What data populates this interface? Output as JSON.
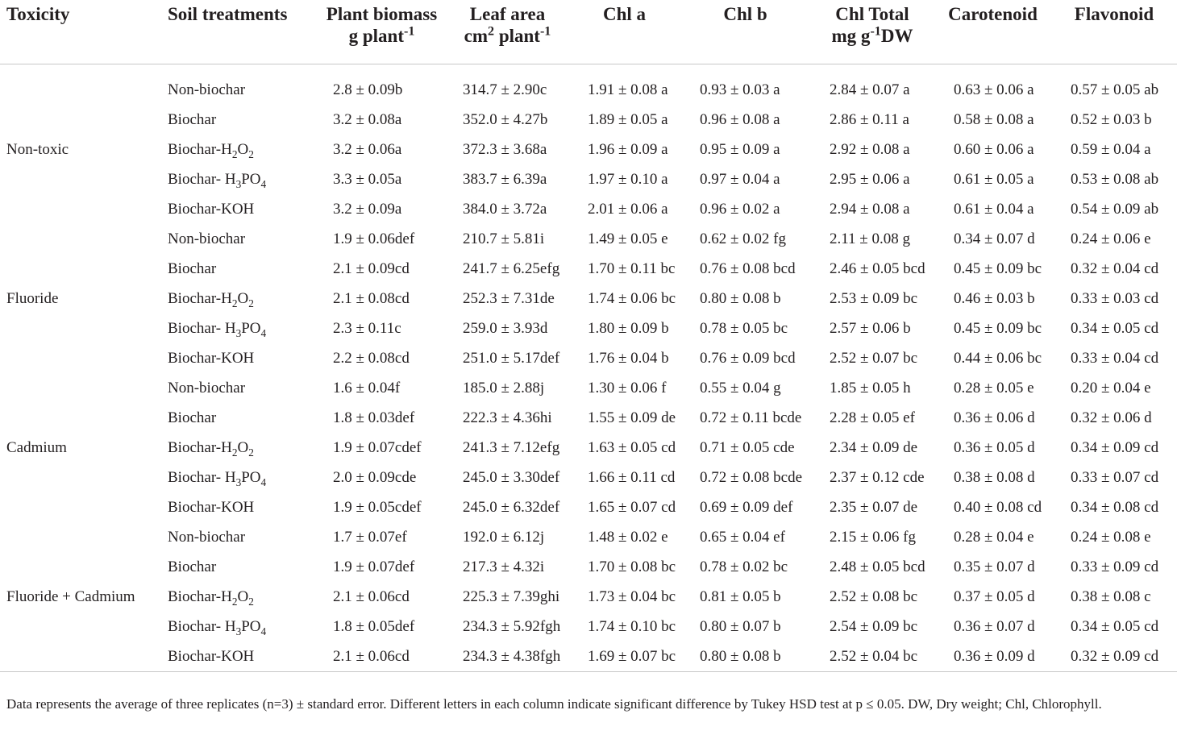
{
  "headers": {
    "toxicity": "Toxicity",
    "soil": "Soil treatments",
    "biomass_line1": "Plant biomass",
    "biomass_line2_pre": "g plant",
    "biomass_line2_sup": "-1",
    "leaf_line1": "Leaf area",
    "leaf_line2_pre": "cm",
    "leaf_line2_sup1": "2",
    "leaf_line2_mid": " plant",
    "leaf_line2_sup2": "-1",
    "chla": "Chl a",
    "chlb": "Chl b",
    "chlt_line1": "Chl Total",
    "chlt_line2_pre": "mg g",
    "chlt_line2_sup": "-1",
    "chlt_line2_post": "DW",
    "carotenoid": "Carotenoid",
    "flavonoid": "Flavonoid"
  },
  "groups": [
    {
      "toxicity": "Non-toxic",
      "rows": [
        {
          "treat": "Non-biochar",
          "biomass": "2.8 ± 0.09b",
          "leaf": "314.7 ± 2.90c",
          "chla": "1.91 ± 0.08 a",
          "chlb": "0.93 ± 0.03 a",
          "chlt": "2.84 ± 0.07 a",
          "car": "0.63 ± 0.06 a",
          "flav": "0.57 ± 0.05 ab"
        },
        {
          "treat": "Biochar",
          "biomass": "3.2 ± 0.08a",
          "leaf": "352.0 ± 4.27b",
          "chla": "1.89 ± 0.05 a",
          "chlb": "0.96 ± 0.08 a",
          "chlt": "2.86 ± 0.11 a",
          "car": "0.58 ± 0.08 a",
          "flav": "0.52 ± 0.03 b"
        },
        {
          "treat_pre": "Biochar-H",
          "treat_sub1": "2",
          "treat_mid": "O",
          "treat_sub2": "2",
          "biomass": "3.2 ± 0.06a",
          "leaf": "372.3 ± 3.68a",
          "chla": "1.96 ± 0.09 a",
          "chlb": "0.95 ± 0.09 a",
          "chlt": "2.92 ± 0.08 a",
          "car": "0.60 ± 0.06 a",
          "flav": "0.59 ± 0.04 a"
        },
        {
          "treat_pre": "Biochar- H",
          "treat_sub1": "3",
          "treat_mid": "PO",
          "treat_sub2": "4",
          "biomass": "3.3 ± 0.05a",
          "leaf": "383.7 ± 6.39a",
          "chla": "1.97 ± 0.10 a",
          "chlb": "0.97 ± 0.04 a",
          "chlt": "2.95 ± 0.06 a",
          "car": "0.61 ± 0.05 a",
          "flav": "0.53 ± 0.08 ab"
        },
        {
          "treat": "Biochar-KOH",
          "biomass": "3.2 ± 0.09a",
          "leaf": "384.0 ± 3.72a",
          "chla": "2.01 ± 0.06 a",
          "chlb": "0.96 ± 0.02 a",
          "chlt": "2.94 ± 0.08 a",
          "car": "0.61 ± 0.04 a",
          "flav": "0.54 ± 0.09 ab"
        }
      ]
    },
    {
      "toxicity": "Fluoride",
      "rows": [
        {
          "treat": "Non-biochar",
          "biomass": "1.9 ± 0.06def",
          "leaf": "210.7 ± 5.81i",
          "chla": "1.49 ± 0.05 e",
          "chlb": "0.62 ± 0.02 fg",
          "chlt": "2.11 ± 0.08 g",
          "car": "0.34 ± 0.07 d",
          "flav": "0.24 ± 0.06 e"
        },
        {
          "treat": "Biochar",
          "biomass": "2.1 ± 0.09cd",
          "leaf": "241.7 ± 6.25efg",
          "chla": "1.70 ± 0.11 bc",
          "chlb": "0.76 ± 0.08 bcd",
          "chlt": "2.46 ± 0.05 bcd",
          "car": "0.45 ± 0.09 bc",
          "flav": "0.32 ± 0.04 cd"
        },
        {
          "treat_pre": "Biochar-H",
          "treat_sub1": "2",
          "treat_mid": "O",
          "treat_sub2": "2",
          "biomass": "2.1 ± 0.08cd",
          "leaf": "252.3 ± 7.31de",
          "chla": "1.74 ± 0.06 bc",
          "chlb": "0.80 ± 0.08 b",
          "chlt": "2.53 ± 0.09 bc",
          "car": "0.46 ± 0.03 b",
          "flav": "0.33 ± 0.03 cd"
        },
        {
          "treat_pre": "Biochar- H",
          "treat_sub1": "3",
          "treat_mid": "PO",
          "treat_sub2": "4",
          "biomass": "2.3 ± 0.11c",
          "leaf": "259.0 ± 3.93d",
          "chla": "1.80 ± 0.09 b",
          "chlb": "0.78 ± 0.05 bc",
          "chlt": "2.57 ± 0.06 b",
          "car": "0.45 ± 0.09 bc",
          "flav": "0.34 ± 0.05 cd"
        },
        {
          "treat": "Biochar-KOH",
          "biomass": "2.2 ± 0.08cd",
          "leaf": "251.0 ± 5.17def",
          "chla": "1.76 ± 0.04 b",
          "chlb": "0.76 ± 0.09 bcd",
          "chlt": "2.52 ± 0.07 bc",
          "car": "0.44 ± 0.06 bc",
          "flav": "0.33 ± 0.04 cd"
        }
      ]
    },
    {
      "toxicity": "Cadmium",
      "rows": [
        {
          "treat": "Non-biochar",
          "biomass": "1.6 ± 0.04f",
          "leaf": "185.0 ± 2.88j",
          "chla": "1.30 ± 0.06 f",
          "chlb": "0.55 ± 0.04 g",
          "chlt": "1.85 ± 0.05 h",
          "car": "0.28 ± 0.05 e",
          "flav": "0.20 ± 0.04 e"
        },
        {
          "treat": "Biochar",
          "biomass": "1.8 ± 0.03def",
          "leaf": "222.3 ± 4.36hi",
          "chla": "1.55 ± 0.09 de",
          "chlb": "0.72 ± 0.11 bcde",
          "chlt": "2.28 ± 0.05 ef",
          "car": "0.36 ± 0.06 d",
          "flav": "0.32 ± 0.06 d"
        },
        {
          "treat_pre": "Biochar-H",
          "treat_sub1": "2",
          "treat_mid": "O",
          "treat_sub2": "2",
          "biomass": "1.9 ± 0.07cdef",
          "leaf": "241.3 ± 7.12efg",
          "chla": "1.63 ± 0.05 cd",
          "chlb": "0.71 ± 0.05 cde",
          "chlt": "2.34 ± 0.09 de",
          "car": "0.36 ± 0.05 d",
          "flav": "0.34 ± 0.09 cd"
        },
        {
          "treat_pre": "Biochar- H",
          "treat_sub1": "3",
          "treat_mid": "PO",
          "treat_sub2": "4",
          "biomass": "2.0 ± 0.09cde",
          "leaf": "245.0 ± 3.30def",
          "chla": "1.66 ± 0.11 cd",
          "chlb": "0.72 ± 0.08 bcde",
          "chlt": "2.37 ± 0.12 cde",
          "car": "0.38 ± 0.08 d",
          "flav": "0.33 ± 0.07 cd"
        },
        {
          "treat": "Biochar-KOH",
          "biomass": "1.9 ± 0.05cdef",
          "leaf": "245.0 ± 6.32def",
          "chla": "1.65 ± 0.07 cd",
          "chlb": "0.69 ± 0.09 def",
          "chlt": "2.35 ± 0.07 de",
          "car": "0.40 ± 0.08 cd",
          "flav": "0.34 ± 0.08 cd"
        }
      ]
    },
    {
      "toxicity": "Fluoride + Cadmium",
      "rows": [
        {
          "treat": "Non-biochar",
          "biomass": "1.7 ± 0.07ef",
          "leaf": "192.0 ± 6.12j",
          "chla": "1.48 ± 0.02 e",
          "chlb": "0.65 ± 0.04 ef",
          "chlt": "2.15 ± 0.06 fg",
          "car": "0.28 ± 0.04 e",
          "flav": "0.24 ± 0.08 e"
        },
        {
          "treat": "Biochar",
          "biomass": "1.9 ± 0.07def",
          "leaf": "217.3 ± 4.32i",
          "chla": "1.70 ± 0.08 bc",
          "chlb": "0.78 ± 0.02 bc",
          "chlt": "2.48 ± 0.05 bcd",
          "car": "0.35 ± 0.07 d",
          "flav": "0.33 ± 0.09 cd"
        },
        {
          "treat_pre": "Biochar-H",
          "treat_sub1": "2",
          "treat_mid": "O",
          "treat_sub2": "2",
          "biomass": "2.1 ± 0.06cd",
          "leaf": "225.3 ± 7.39ghi",
          "chla": "1.73 ± 0.04 bc",
          "chlb": "0.81 ± 0.05 b",
          "chlt": "2.52 ± 0.08 bc",
          "car": "0.37 ± 0.05 d",
          "flav": "0.38 ± 0.08 c"
        },
        {
          "treat_pre": "Biochar- H",
          "treat_sub1": "3",
          "treat_mid": "PO",
          "treat_sub2": "4",
          "biomass": "1.8 ± 0.05def",
          "leaf": "234.3 ± 5.92fgh",
          "chla": "1.74 ± 0.10 bc",
          "chlb": "0.80 ± 0.07 b",
          "chlt": "2.54 ± 0.09 bc",
          "car": "0.36 ± 0.07 d",
          "flav": "0.34 ± 0.05 cd"
        },
        {
          "treat": "Biochar-KOH",
          "biomass": "2.1 ± 0.06cd",
          "leaf": "234.3 ± 4.38fgh",
          "chla": "1.69 ± 0.07 bc",
          "chlb": "0.80 ± 0.08 b",
          "chlt": "2.52 ± 0.04 bc",
          "car": "0.36 ± 0.09 d",
          "flav": "0.32 ± 0.09 cd"
        }
      ]
    }
  ],
  "footnote": "Data represents the average of three replicates (n=3) ± standard error. Different letters in each column indicate significant difference by Tukey HSD test at p ≤ 0.05. DW, Dry weight; Chl, Chlorophyll."
}
